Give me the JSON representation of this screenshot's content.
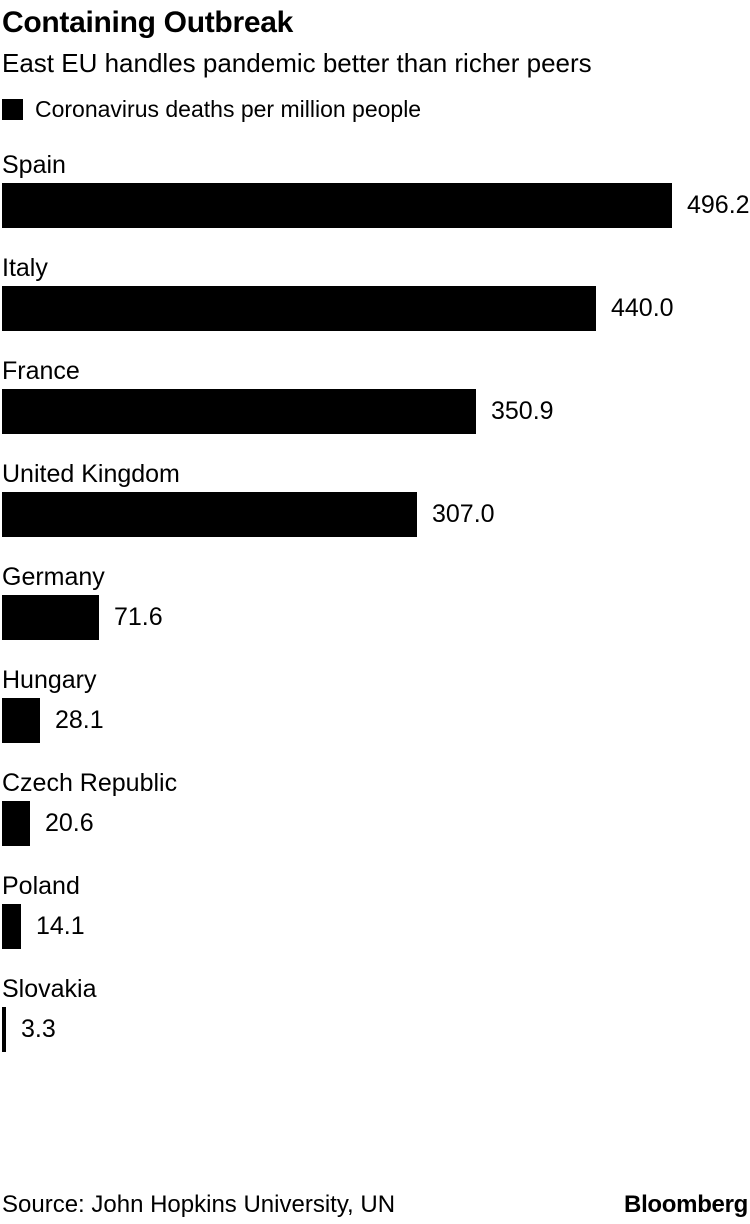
{
  "header": {
    "title": "Containing Outbreak",
    "subtitle": "East EU handles pandemic better than richer peers"
  },
  "legend": {
    "label": "Coronavirus deaths per million people",
    "swatch_color": "#000000"
  },
  "chart_data": {
    "type": "bar",
    "orientation": "horizontal",
    "title": "Containing Outbreak",
    "subtitle": "East EU handles pandemic better than richer peers",
    "series_name": "Coronavirus deaths per million people",
    "categories": [
      "Spain",
      "Italy",
      "France",
      "United Kingdom",
      "Germany",
      "Hungary",
      "Czech Republic",
      "Poland",
      "Slovakia"
    ],
    "values": [
      496.2,
      440.0,
      350.9,
      307.0,
      71.6,
      28.1,
      20.6,
      14.1,
      3.3
    ],
    "value_labels": [
      "496.2",
      "440.0",
      "350.9",
      "307.0",
      "71.6",
      "28.1",
      "20.6",
      "14.1",
      "3.3"
    ],
    "xlabel": "",
    "ylabel": "",
    "xlim": [
      0,
      496.2
    ],
    "bar_color": "#000000",
    "grid": false,
    "legend_position": "top-left",
    "value_label_position": "right-of-bar"
  },
  "footer": {
    "source": "Source: John Hopkins University, UN",
    "brand": "Bloomberg"
  }
}
